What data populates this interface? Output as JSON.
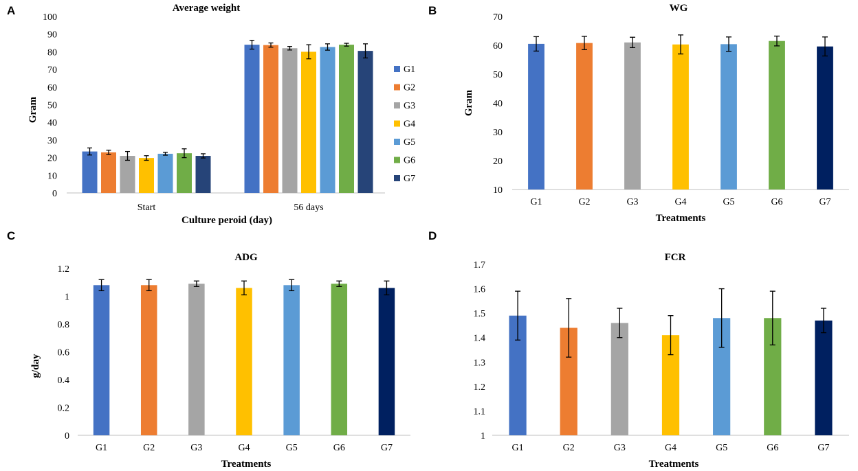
{
  "colors": {
    "G1": "#4472C4",
    "G2": "#ED7D31",
    "G3": "#A5A5A5",
    "G4": "#FFC000",
    "G5": "#5B9BD5",
    "G6": "#70AD47",
    "G7_panel_a": "#264478",
    "G7": "#002060"
  },
  "chart_data": [
    {
      "panel": "A",
      "type": "bar",
      "title": "Average weight",
      "xlabel": "Culture peroid (day)",
      "ylabel": "Gram",
      "ylim": [
        0,
        100
      ],
      "yticks": [
        "0",
        "10",
        "20",
        "30",
        "40",
        "50",
        "60",
        "70",
        "80",
        "90",
        "100"
      ],
      "categories": [
        "Start",
        "56 days"
      ],
      "legend": [
        "G1",
        "G2",
        "G3",
        "G4",
        "G5",
        "G6",
        "G7"
      ],
      "legend_position": "right",
      "series": [
        {
          "name": "G1",
          "values": [
            23.5,
            84.0
          ],
          "errors": [
            2.0,
            2.5
          ]
        },
        {
          "name": "G2",
          "values": [
            23.0,
            83.8
          ],
          "errors": [
            1.2,
            1.2
          ]
        },
        {
          "name": "G3",
          "values": [
            21.0,
            82.0
          ],
          "errors": [
            2.5,
            1.0
          ]
        },
        {
          "name": "G4",
          "values": [
            19.8,
            80.0
          ],
          "errors": [
            1.3,
            4.0
          ]
        },
        {
          "name": "G5",
          "values": [
            22.2,
            82.7
          ],
          "errors": [
            0.8,
            1.8
          ]
        },
        {
          "name": "G6",
          "values": [
            22.5,
            84.0
          ],
          "errors": [
            2.5,
            0.8
          ]
        },
        {
          "name": "G7",
          "values": [
            21.0,
            80.5
          ],
          "errors": [
            1.2,
            4.0
          ]
        }
      ]
    },
    {
      "panel": "B",
      "type": "bar",
      "title": "WG",
      "xlabel": "Treatments",
      "ylabel": "Gram",
      "ylim": [
        10,
        70
      ],
      "yticks": [
        "10",
        "20",
        "30",
        "40",
        "50",
        "60",
        "70"
      ],
      "categories": [
        "G1",
        "G2",
        "G3",
        "G4",
        "G5",
        "G6",
        "G7"
      ],
      "values": [
        60.5,
        60.8,
        61.0,
        60.3,
        60.4,
        61.5,
        59.6
      ],
      "errors": [
        2.5,
        2.3,
        1.8,
        3.3,
        2.5,
        1.7,
        3.3
      ]
    },
    {
      "panel": "C",
      "type": "bar",
      "title": "ADG",
      "xlabel": "Treatments",
      "ylabel": "g/day",
      "ylim": [
        0,
        1.2
      ],
      "yticks": [
        "0",
        "0.2",
        "0.4",
        "0.6",
        "0.8",
        "1",
        "1.2"
      ],
      "categories": [
        "G1",
        "G2",
        "G3",
        "G4",
        "G5",
        "G6",
        "G7"
      ],
      "values": [
        1.08,
        1.08,
        1.09,
        1.06,
        1.08,
        1.09,
        1.06
      ],
      "errors": [
        0.04,
        0.04,
        0.02,
        0.05,
        0.04,
        0.02,
        0.05
      ]
    },
    {
      "panel": "D",
      "type": "bar",
      "title": "FCR",
      "xlabel": "Treatments",
      "ylabel": "",
      "ylim": [
        1,
        1.7
      ],
      "yticks": [
        "1",
        "1.1",
        "1.2",
        "1.3",
        "1.4",
        "1.5",
        "1.6",
        "1.7"
      ],
      "categories": [
        "G1",
        "G2",
        "G3",
        "G4",
        "G5",
        "G6",
        "G7"
      ],
      "values": [
        1.49,
        1.44,
        1.46,
        1.41,
        1.48,
        1.48,
        1.47
      ],
      "errors": [
        0.1,
        0.12,
        0.06,
        0.08,
        0.12,
        0.11,
        0.05
      ]
    }
  ]
}
